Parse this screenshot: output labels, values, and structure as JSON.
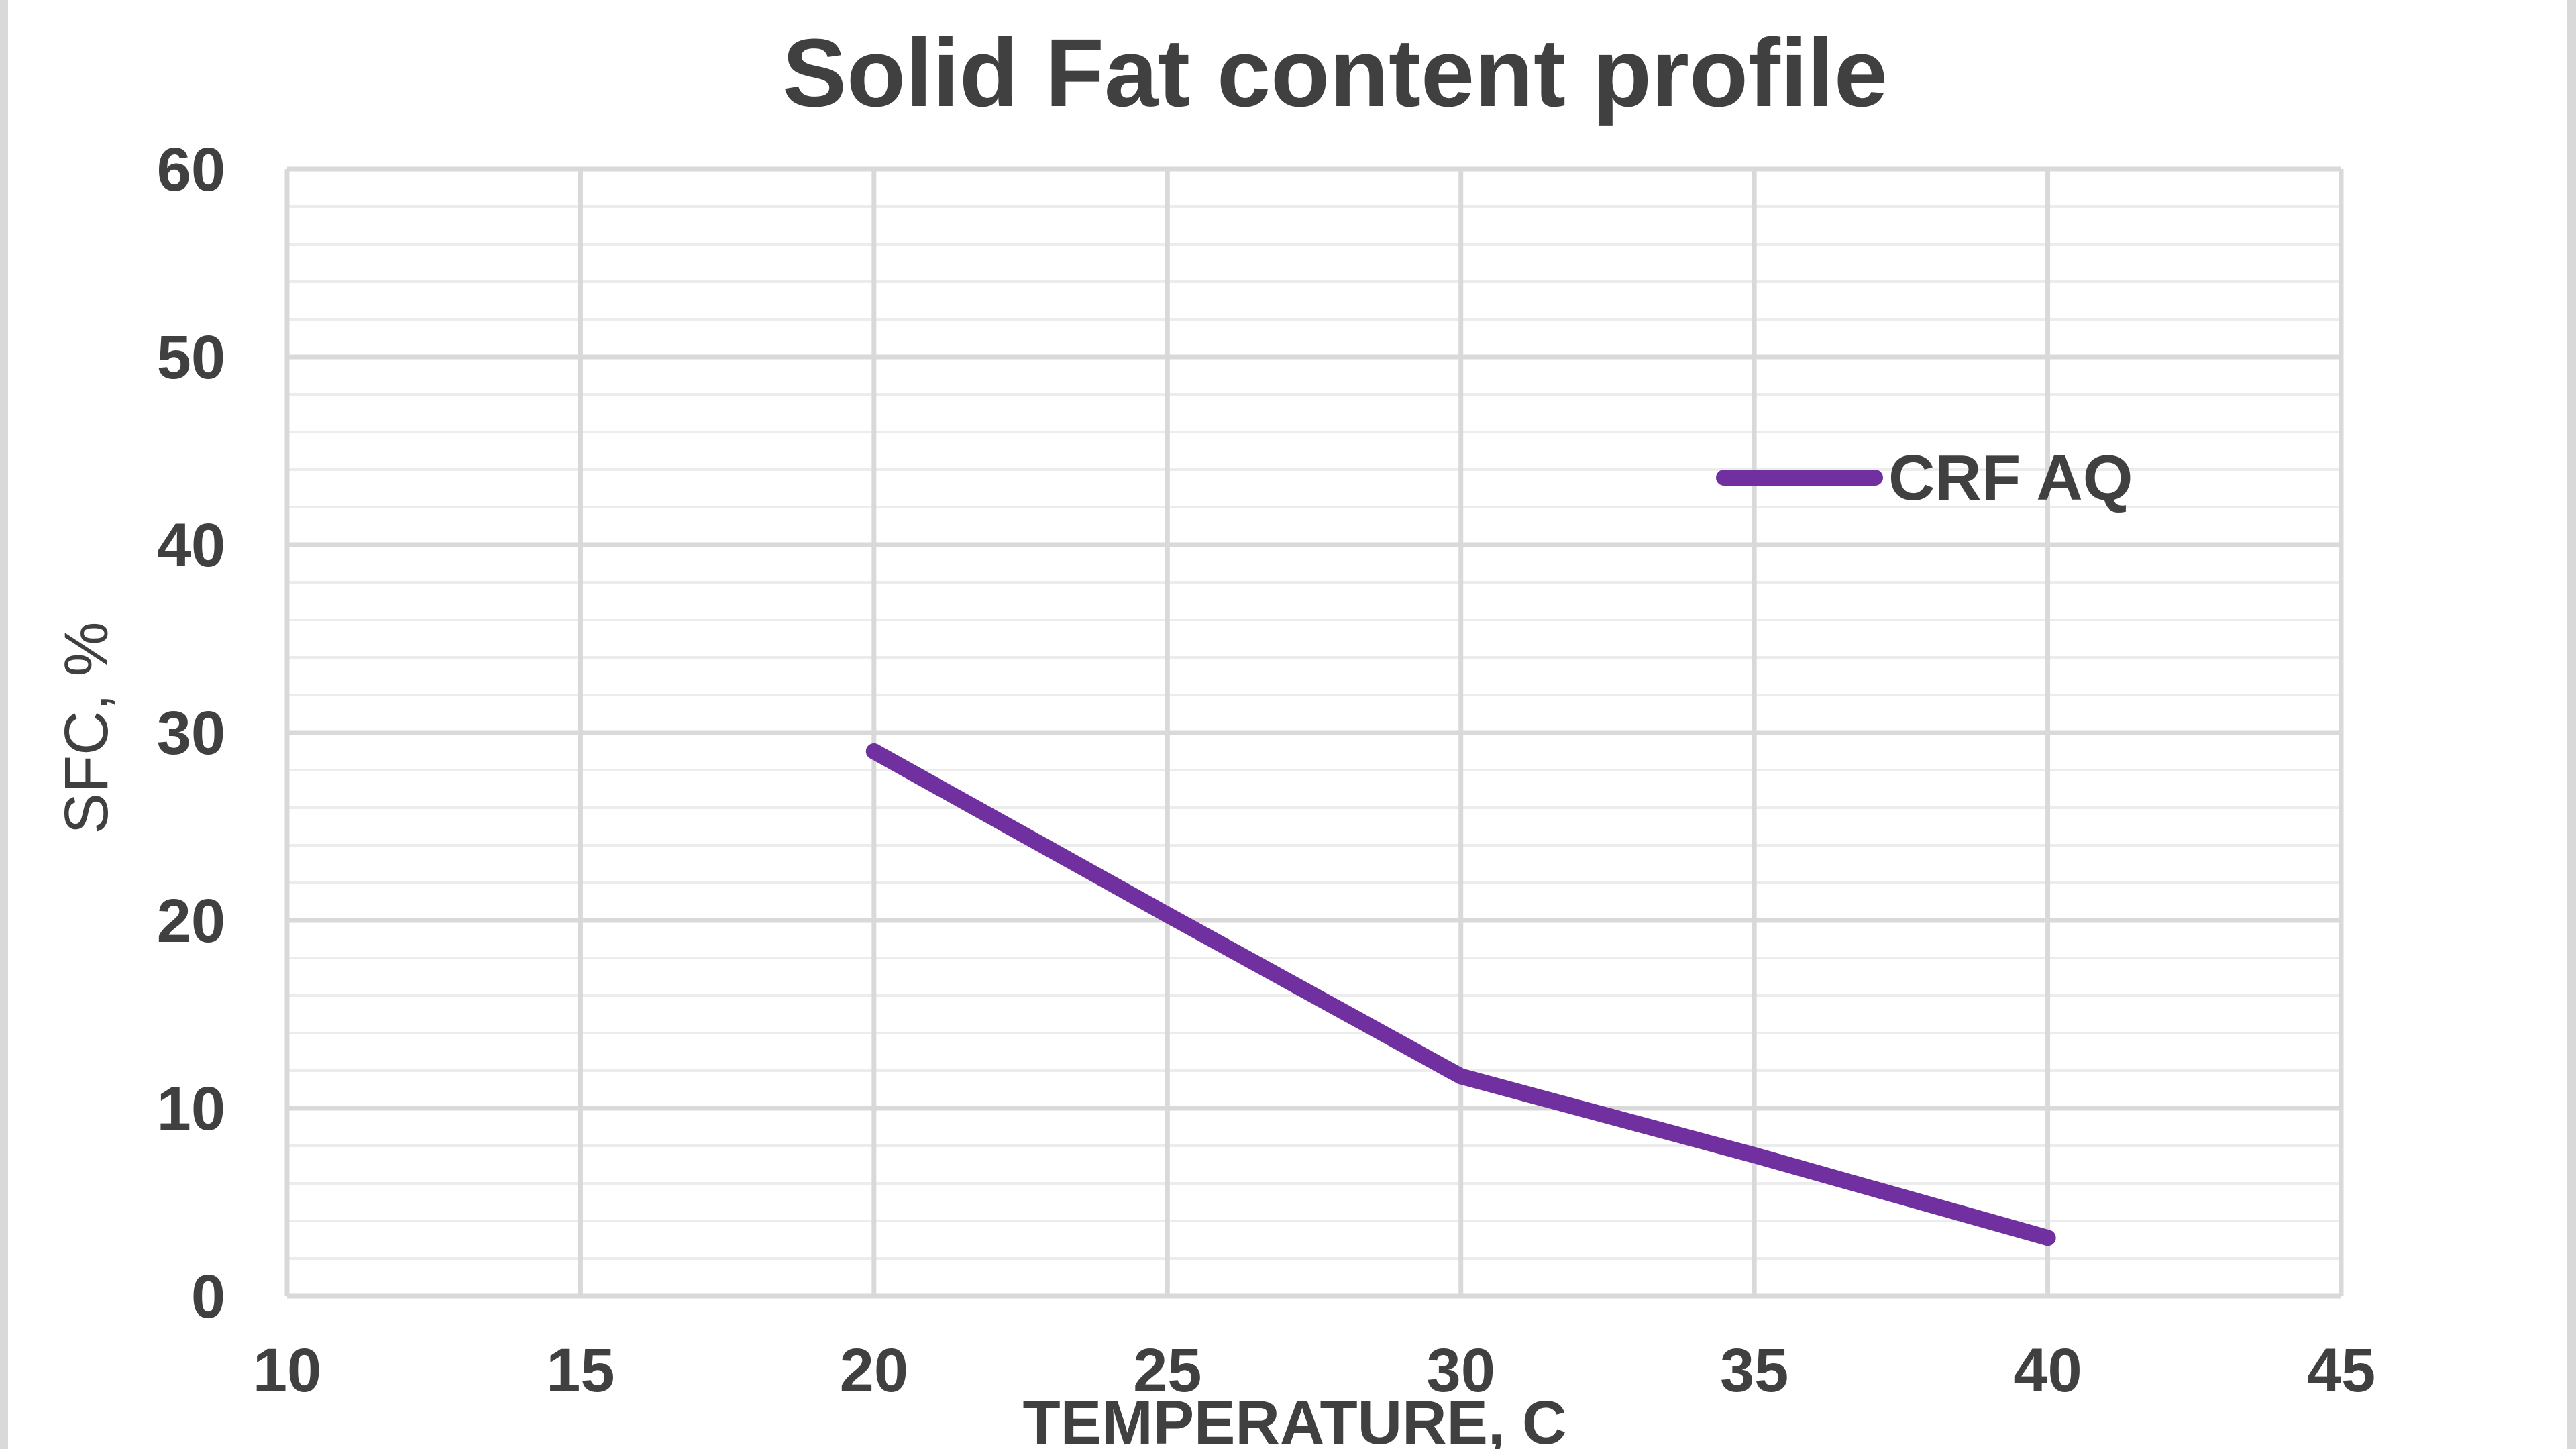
{
  "chart_data": {
    "type": "line",
    "title": "Solid Fat content profile",
    "xlabel": "TEMPERATURE, C",
    "ylabel": "SFC, %",
    "xlim": [
      10,
      45
    ],
    "ylim": [
      0,
      60
    ],
    "x_ticks": [
      10,
      15,
      20,
      25,
      30,
      35,
      40,
      45
    ],
    "y_ticks": [
      0,
      10,
      20,
      30,
      40,
      50,
      60
    ],
    "x_tick_labels": [
      "10",
      "15",
      "20",
      "25",
      "30",
      "35",
      "40",
      "45"
    ],
    "y_tick_labels": [
      "0",
      "10",
      "20",
      "30",
      "40",
      "50",
      "60"
    ],
    "minor_y_step": 2,
    "grid": true,
    "legend_position": "top-right",
    "series": [
      {
        "name": "CRF AQ",
        "color": "#7030a0",
        "x": [
          20,
          25,
          30,
          35,
          40
        ],
        "y": [
          29,
          20.3,
          11.7,
          7.5,
          3.1
        ]
      }
    ]
  }
}
